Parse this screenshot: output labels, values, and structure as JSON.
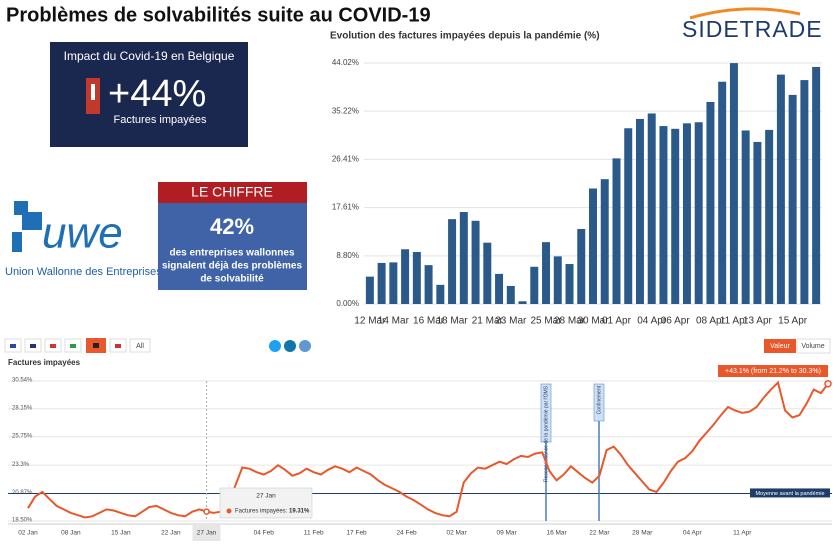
{
  "title": "Problèmes de solvabilités suite au COVID-19",
  "logo": "SIDETRADE",
  "banner": {
    "heading": "Impact du Covid-19 en Belgique",
    "figure": "+44%",
    "caption": "Factures impayées"
  },
  "uwe": {
    "logo": "uwe",
    "name": "Union Wallonne des Entreprises"
  },
  "le_chiffre": {
    "heading": "LE CHIFFRE",
    "figure": "42%",
    "lines": [
      "des entreprises wallonnes",
      "signalent déjà des problèmes",
      "de solvabilité"
    ]
  },
  "controls": {
    "all": "All",
    "buttons": [
      "Valeur",
      "Volume"
    ]
  },
  "chart_data": [
    {
      "type": "bar",
      "title": "Evolution des factures impayées depuis la pandémie (%)",
      "categories": [
        "12 Mar",
        null,
        "14 Mar",
        null,
        null,
        "16 Mar",
        null,
        "18 Mar",
        null,
        null,
        "21 Mar",
        null,
        "23 Mar",
        null,
        null,
        "25 Mar",
        null,
        "28 Mar",
        null,
        "30 Mar",
        null,
        "01 Apr",
        null,
        null,
        "04 Apr",
        null,
        "06 Apr",
        null,
        null,
        "08 Apr",
        null,
        "11 Apr",
        null,
        "13 Apr",
        null,
        null,
        "15 Apr",
        null,
        null
      ],
      "values": [
        5.0,
        7.5,
        7.6,
        10.0,
        9.5,
        7.1,
        3.5,
        15.5,
        16.8,
        15.2,
        11.2,
        5.5,
        3.3,
        0.5,
        6.8,
        11.3,
        8.7,
        7.3,
        13.7,
        21.1,
        22.8,
        26.6,
        32.1,
        33.8,
        34.8,
        32.5,
        32.0,
        33.0,
        33.2,
        36.9,
        40.6,
        44.0,
        31.7,
        29.6,
        31.8,
        41.9,
        38.2,
        40.9,
        43.3
      ],
      "color": "#2b5a8a",
      "ylim": [
        0,
        44.02
      ],
      "yticks": [
        {
          "value": 0,
          "label": "0.00%"
        },
        {
          "value": 8.8,
          "label": "8.80%"
        },
        {
          "value": 17.61,
          "label": "17.61%"
        },
        {
          "value": 26.41,
          "label": "26.41%"
        },
        {
          "value": 35.22,
          "label": "35.22%"
        },
        {
          "value": 44.02,
          "label": "44.02%"
        }
      ],
      "grid": true
    },
    {
      "type": "line",
      "title": "Factures impayées",
      "categories": [
        "02 Jan",
        null,
        null,
        null,
        null,
        null,
        "08 Jan",
        null,
        null,
        null,
        null,
        null,
        null,
        "15 Jan",
        null,
        null,
        null,
        null,
        null,
        null,
        "22 Jan",
        null,
        null,
        null,
        null,
        "27 Jan",
        null,
        null,
        null,
        null,
        null,
        null,
        null,
        "04 Feb",
        null,
        null,
        null,
        null,
        null,
        null,
        "11 Feb",
        null,
        null,
        null,
        null,
        null,
        "17 Feb",
        null,
        null,
        null,
        null,
        null,
        null,
        "24 Feb",
        null,
        null,
        null,
        null,
        null,
        null,
        "02 Mar",
        null,
        null,
        null,
        null,
        null,
        null,
        "09 Mar",
        null,
        null,
        null,
        null,
        null,
        null,
        "16 Mar",
        null,
        null,
        null,
        null,
        null,
        "22 Mar",
        null,
        null,
        null,
        null,
        null,
        "28 Mar",
        null,
        null,
        null,
        null,
        null,
        null,
        "04 Apr",
        null,
        null,
        null,
        null,
        null,
        null,
        "11 Apr",
        null,
        null,
        null,
        null,
        null,
        null,
        null,
        null,
        null,
        null,
        null,
        null
      ],
      "series": [
        {
          "name": "Factures impayées",
          "color": "#e9582b",
          "values": [
            19.6,
            20.6,
            21.0,
            20.4,
            19.8,
            19.5,
            19.2,
            19.0,
            18.8,
            18.9,
            19.2,
            19.5,
            19.4,
            19.2,
            19.0,
            18.9,
            19.3,
            19.7,
            19.8,
            19.5,
            19.2,
            19.0,
            18.9,
            19.3,
            19.5,
            19.31,
            19.2,
            19.3,
            19.6,
            21.5,
            23.1,
            23.0,
            22.7,
            22.5,
            22.8,
            23.3,
            22.9,
            22.4,
            22.6,
            23.0,
            22.7,
            22.5,
            22.9,
            23.2,
            23.0,
            22.7,
            23.1,
            22.8,
            22.5,
            22.0,
            21.6,
            21.3,
            21.0,
            20.6,
            20.3,
            19.9,
            19.5,
            19.2,
            19.0,
            18.9,
            19.3,
            21.8,
            22.6,
            23.1,
            23.0,
            23.3,
            23.6,
            23.4,
            23.8,
            24.1,
            24.0,
            24.3,
            24.4,
            22.8,
            22.0,
            22.5,
            23.2,
            22.7,
            22.2,
            21.8,
            22.4,
            24.6,
            24.9,
            24.2,
            23.3,
            22.6,
            21.9,
            21.2,
            21.0,
            21.8,
            22.8,
            23.6,
            23.9,
            24.5,
            25.4,
            26.1,
            26.8,
            27.6,
            28.3,
            28.0,
            27.8,
            27.9,
            28.3,
            29.1,
            29.8,
            30.4,
            28.0,
            27.4,
            27.6,
            28.6,
            29.8,
            29.5,
            30.3
          ]
        }
      ],
      "ylim": [
        18.5,
        30.54
      ],
      "yticks": [
        {
          "value": 18.5,
          "label": "18.50%"
        },
        {
          "value": 20.87,
          "label": "20.87%"
        },
        {
          "value": 23.3,
          "label": "23.3%"
        },
        {
          "value": 25.75,
          "label": "25.75%"
        },
        {
          "value": 28.15,
          "label": "28.15%"
        },
        {
          "value": 30.54,
          "label": "30.54%"
        }
      ],
      "grid": true,
      "reference_line": {
        "value": 20.87,
        "label": "Moyenne avant la pandémie"
      },
      "events": [
        "Reconnaissance de la pandémie par l'OMS",
        "Confinement"
      ],
      "annotation": "+43.1% (from 21.2% to 30.3%)",
      "tooltip": {
        "label": "Factures impayées:",
        "value_label": "19.31%"
      }
    }
  ]
}
